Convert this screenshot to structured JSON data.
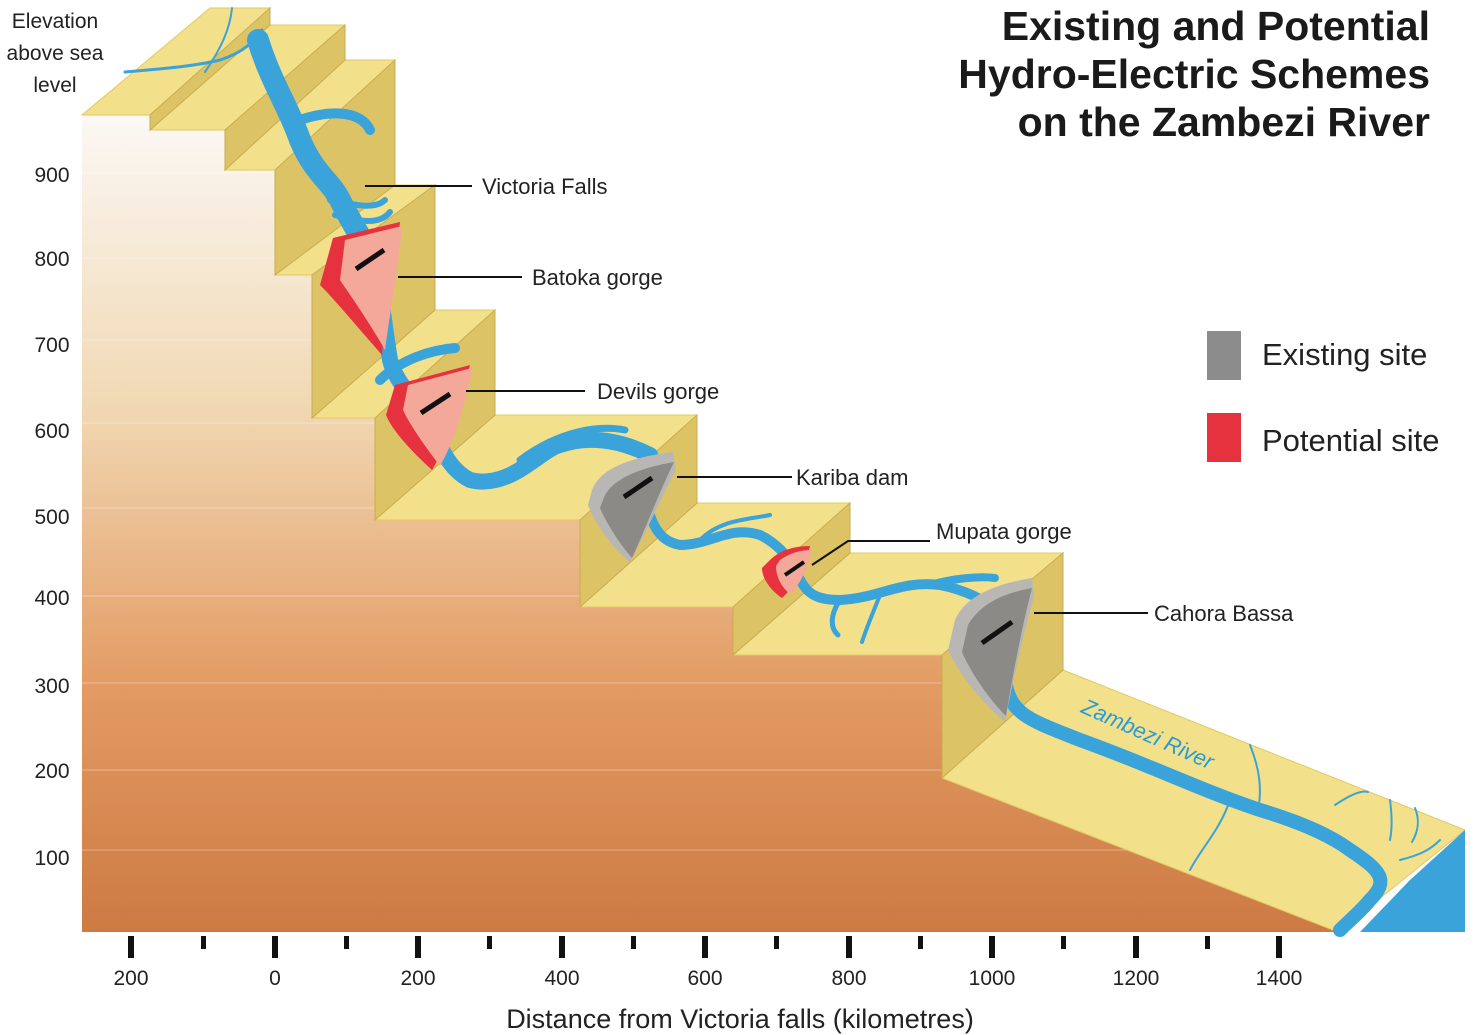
{
  "title": {
    "lines": [
      "Existing and Potential",
      "Hydro-Electric Schemes",
      "on the Zambezi River"
    ]
  },
  "y_axis": {
    "title_lines": [
      "Elevation",
      "above sea",
      "level"
    ],
    "ticks": [
      "900",
      "800",
      "700",
      "600",
      "500",
      "400",
      "300",
      "200",
      "100"
    ]
  },
  "x_axis": {
    "title": "Distance from Victoria falls (kilometres)",
    "ticks": [
      "200",
      "0",
      "200",
      "400",
      "600",
      "800",
      "1000",
      "1200",
      "1400"
    ]
  },
  "sites": [
    {
      "label": "Victoria Falls",
      "kind": "landmark"
    },
    {
      "label": "Batoka gorge",
      "kind": "potential"
    },
    {
      "label": "Devils gorge",
      "kind": "potential"
    },
    {
      "label": "Kariba dam",
      "kind": "existing"
    },
    {
      "label": "Mupata gorge",
      "kind": "potential"
    },
    {
      "label": "Cahora Bassa",
      "kind": "existing"
    }
  ],
  "river_label": "Zambezi River",
  "legend": {
    "existing": {
      "label": "Existing site",
      "color": "#8c8c8c"
    },
    "potential": {
      "label": "Potential site",
      "color": "#e6323e"
    }
  },
  "colors": {
    "river": "#3aa3da",
    "plateau": "#f3e08a",
    "cliff": "#dcc466",
    "potential_face": "#f4a899",
    "existing_face": "#a8a6a3"
  }
}
